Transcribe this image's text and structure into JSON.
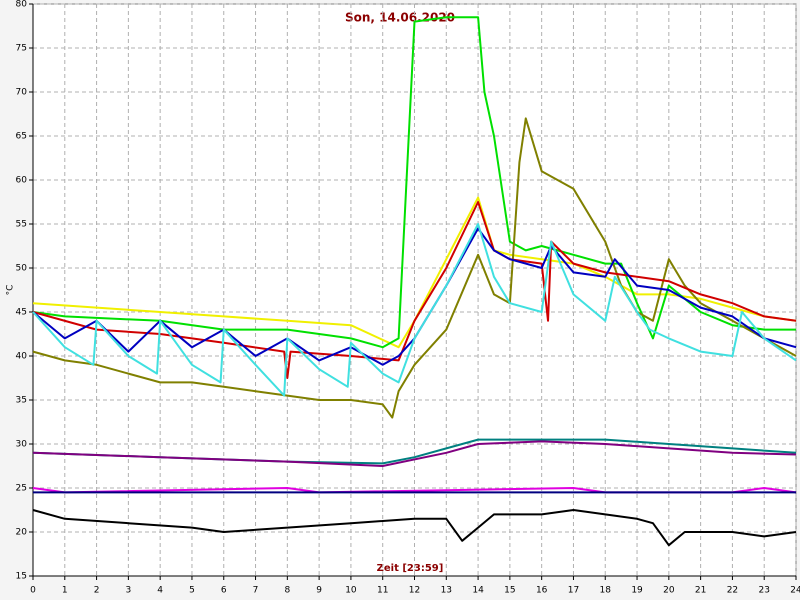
{
  "chart_data": {
    "type": "line",
    "title": "Son, 14.06.2020",
    "x_label": "Zeit [23:59]",
    "y_label": "°C",
    "xlim": [
      0,
      24
    ],
    "xticks": [
      0,
      1,
      2,
      3,
      4,
      5,
      6,
      7,
      8,
      9,
      10,
      11,
      12,
      13,
      14,
      15,
      16,
      17,
      18,
      19,
      20,
      21,
      22,
      23,
      24
    ],
    "ylim": [
      15,
      80
    ],
    "yticks": [
      15,
      20,
      25,
      30,
      35,
      40,
      45,
      50,
      55,
      60,
      65,
      70,
      75,
      80
    ],
    "grid": true,
    "series": [
      {
        "color": "#f0f000",
        "x": [
          0,
          2,
          4,
          6,
          8,
          10,
          11.5,
          12,
          13,
          14,
          14.5,
          15,
          16,
          17,
          18,
          19,
          20,
          21,
          22,
          23,
          24
        ],
        "values": [
          46,
          45.5,
          45,
          44.5,
          44,
          43.5,
          41,
          44,
          51,
          58,
          52,
          51.5,
          51,
          50.5,
          49,
          47,
          47,
          46.5,
          45.5,
          44.5,
          44
        ]
      },
      {
        "color": "#00e000",
        "x": [
          0,
          1,
          4,
          6,
          8,
          10,
          11,
          11.5,
          12,
          13,
          14,
          14.2,
          14.5,
          15,
          15.5,
          16,
          16.5,
          17,
          18,
          18.5,
          19,
          19.5,
          20,
          21,
          22,
          23,
          24
        ],
        "values": [
          45,
          44.5,
          44,
          43,
          43,
          42,
          41,
          42,
          78,
          78.5,
          78.5,
          70,
          65,
          53,
          52,
          52.5,
          52,
          51.5,
          50.5,
          50.5,
          46,
          42,
          48,
          45,
          43.5,
          43,
          43
        ]
      },
      {
        "color": "#808000",
        "x": [
          0,
          1,
          2,
          3,
          4,
          5,
          6,
          7,
          8,
          9,
          10,
          11,
          11.3,
          11.5,
          12,
          13,
          14,
          14.5,
          15,
          15.3,
          15.5,
          16,
          17,
          18,
          18.5,
          19,
          19.5,
          20,
          20.5,
          21,
          22,
          23,
          24
        ],
        "values": [
          40.5,
          39.5,
          39,
          38,
          37,
          37,
          36.5,
          36,
          35.5,
          35,
          35,
          34.5,
          33,
          36,
          39,
          43,
          51.5,
          47,
          46,
          62,
          67,
          61,
          59,
          53,
          48,
          45,
          44,
          51,
          48,
          46,
          44,
          42,
          40
        ]
      },
      {
        "color": "#d00000",
        "x": [
          0,
          2,
          4,
          6,
          7.9,
          8,
          8.1,
          10,
          11.5,
          12,
          13,
          14,
          14.5,
          15,
          16,
          16.2,
          16.3,
          17,
          18,
          19,
          20,
          21,
          22,
          23,
          24
        ],
        "values": [
          45,
          43,
          42.5,
          41.5,
          40.5,
          37.5,
          40.5,
          40,
          39.5,
          44,
          50,
          57.5,
          52,
          51,
          50.5,
          44,
          53,
          50.5,
          49.5,
          49,
          48.5,
          47,
          46,
          44.5,
          44
        ]
      },
      {
        "color": "#0000c0",
        "x": [
          0,
          1,
          2,
          3,
          4,
          5,
          6,
          7,
          8,
          9,
          10,
          11,
          11.5,
          12,
          13,
          14,
          14.5,
          15,
          16,
          16.3,
          17,
          18,
          18.3,
          19,
          20,
          21,
          22,
          23,
          24
        ],
        "values": [
          45,
          42,
          44,
          40.5,
          44,
          41,
          43,
          40,
          42,
          39.5,
          41,
          39,
          40,
          42,
          48,
          54.5,
          52,
          51,
          50,
          52.5,
          49.5,
          49,
          51,
          48,
          47.5,
          45.5,
          44.5,
          42,
          41
        ]
      },
      {
        "color": "#40e0e0",
        "x": [
          0,
          1,
          1.9,
          2,
          3,
          3.9,
          4,
          5,
          5.9,
          6,
          7,
          7.9,
          8,
          9,
          9.9,
          10,
          11,
          11.5,
          12,
          13,
          14,
          14.5,
          15,
          16,
          16.3,
          17,
          18,
          18.3,
          19,
          19.4,
          20,
          21,
          22,
          22.3,
          23,
          24
        ],
        "values": [
          45,
          41,
          39,
          44,
          40,
          38,
          44,
          39,
          37,
          43,
          39,
          35.5,
          42,
          38.5,
          36.5,
          41.5,
          38,
          37,
          42,
          48,
          55,
          49,
          46,
          45,
          53,
          47,
          44,
          49,
          45,
          43,
          42,
          40.5,
          40,
          45,
          42,
          39.5
        ]
      },
      {
        "color": "#008080",
        "x": [
          0,
          4,
          8,
          11,
          12,
          13,
          14,
          16,
          18,
          20,
          22,
          24
        ],
        "values": [
          29,
          28.5,
          28,
          27.8,
          28.5,
          29.5,
          30.5,
          30.5,
          30.5,
          30,
          29.5,
          29
        ]
      },
      {
        "color": "#800080",
        "x": [
          0,
          4,
          8,
          11,
          13,
          14,
          16,
          18,
          20,
          22,
          24
        ],
        "values": [
          29,
          28.5,
          28,
          27.5,
          29,
          30,
          30.3,
          30,
          29.5,
          29,
          28.8
        ]
      },
      {
        "color": "#e000e0",
        "x": [
          0,
          1,
          8,
          9,
          17,
          18,
          22,
          23,
          24
        ],
        "values": [
          25,
          24.5,
          25,
          24.5,
          25,
          24.5,
          24.5,
          25,
          24.5
        ]
      },
      {
        "color": "#000080",
        "x": [
          0,
          24
        ],
        "values": [
          24.5,
          24.5
        ]
      },
      {
        "color": "#000000",
        "x": [
          0,
          1,
          3,
          5,
          6,
          8,
          10,
          12,
          13,
          13.5,
          14,
          14.5,
          16,
          17,
          18,
          19,
          19.5,
          20,
          20.5,
          22,
          23,
          24
        ],
        "values": [
          22.5,
          21.5,
          21,
          20.5,
          20,
          20.5,
          21,
          21.5,
          21.5,
          19,
          20.5,
          22,
          22,
          22.5,
          22,
          21.5,
          21,
          18.5,
          20,
          20,
          19.5,
          20
        ]
      }
    ]
  }
}
